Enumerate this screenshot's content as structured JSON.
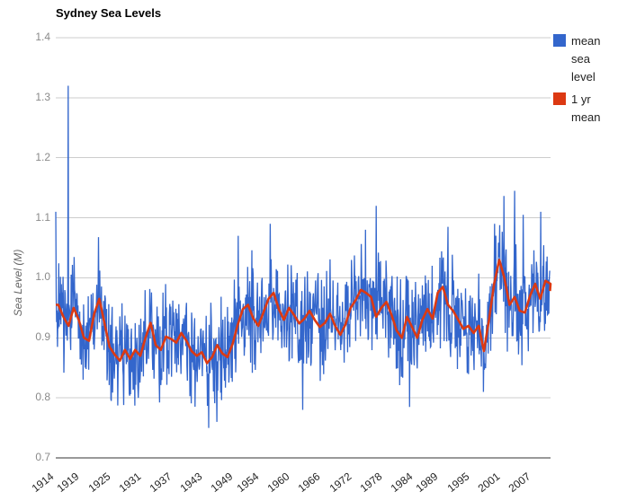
{
  "chart_data": {
    "type": "line",
    "title": "Sydney Sea Levels",
    "xlabel": "",
    "ylabel": "Sea Level (M)",
    "ylim": [
      0.7,
      1.4
    ],
    "x_range": [
      1914,
      2010.5
    ],
    "grid": true,
    "legend_position": "right",
    "y_ticks": [
      1.4,
      1.3,
      1.2,
      1.1,
      1.0,
      0.9,
      0.8,
      0.7
    ],
    "y_tick_labels": [
      "1.4",
      "1.3",
      "1.2",
      "1.1",
      "1.0",
      "0.9",
      "0.8",
      "0.7"
    ],
    "x_ticks": [
      1914,
      1919,
      1925,
      1931,
      1937,
      1943,
      1949,
      1954,
      1960,
      1966,
      1972,
      1978,
      1984,
      1989,
      1995,
      2001,
      2007
    ],
    "gridline_color": "#cccccc",
    "baseline_color": "#333333",
    "series": [
      {
        "name": "mean sea level",
        "color": "#3366CC",
        "kind": "monthly-noisy",
        "derived_from": "1 yr mean",
        "points_per_year": 12,
        "noise_amplitude": 0.1,
        "seed": 914,
        "extremes": [
          [
            1914.0,
            1.11
          ],
          [
            1916.4,
            1.32
          ],
          [
            1924.8,
            0.795
          ],
          [
            1930.1,
            0.8
          ],
          [
            1943.8,
            0.75
          ],
          [
            1949.6,
            1.07
          ],
          [
            1955.8,
            1.09
          ],
          [
            1962.2,
            0.78
          ],
          [
            1974.4,
            1.08
          ],
          [
            1976.5,
            1.12
          ],
          [
            1983.0,
            0.785
          ],
          [
            1990.5,
            1.085
          ],
          [
            1997.4,
            0.81
          ],
          [
            1999.6,
            1.09
          ],
          [
            2003.5,
            1.145
          ],
          [
            2005.2,
            1.105
          ],
          [
            2008.6,
            1.11
          ]
        ]
      },
      {
        "name": "1 yr mean",
        "color": "#DC3912",
        "kind": "annual",
        "years_start": 1914,
        "values": [
          0.955,
          0.935,
          0.92,
          0.95,
          0.93,
          0.9,
          0.895,
          0.94,
          0.965,
          0.925,
          0.885,
          0.872,
          0.862,
          0.88,
          0.865,
          0.88,
          0.87,
          0.9,
          0.925,
          0.888,
          0.88,
          0.902,
          0.898,
          0.892,
          0.908,
          0.895,
          0.878,
          0.87,
          0.876,
          0.858,
          0.868,
          0.888,
          0.874,
          0.868,
          0.89,
          0.922,
          0.948,
          0.955,
          0.933,
          0.92,
          0.942,
          0.965,
          0.975,
          0.948,
          0.93,
          0.95,
          0.938,
          0.924,
          0.932,
          0.945,
          0.93,
          0.918,
          0.925,
          0.94,
          0.92,
          0.905,
          0.922,
          0.95,
          0.963,
          0.98,
          0.975,
          0.968,
          0.935,
          0.95,
          0.96,
          0.938,
          0.912,
          0.9,
          0.935,
          0.918,
          0.9,
          0.93,
          0.948,
          0.932,
          0.975,
          0.985,
          0.955,
          0.945,
          0.93,
          0.915,
          0.92,
          0.908,
          0.92,
          0.878,
          0.93,
          0.99,
          1.03,
          1.0,
          0.955,
          0.968,
          0.945,
          0.942,
          0.97,
          0.99,
          0.965,
          0.995,
          0.99
        ]
      }
    ]
  }
}
